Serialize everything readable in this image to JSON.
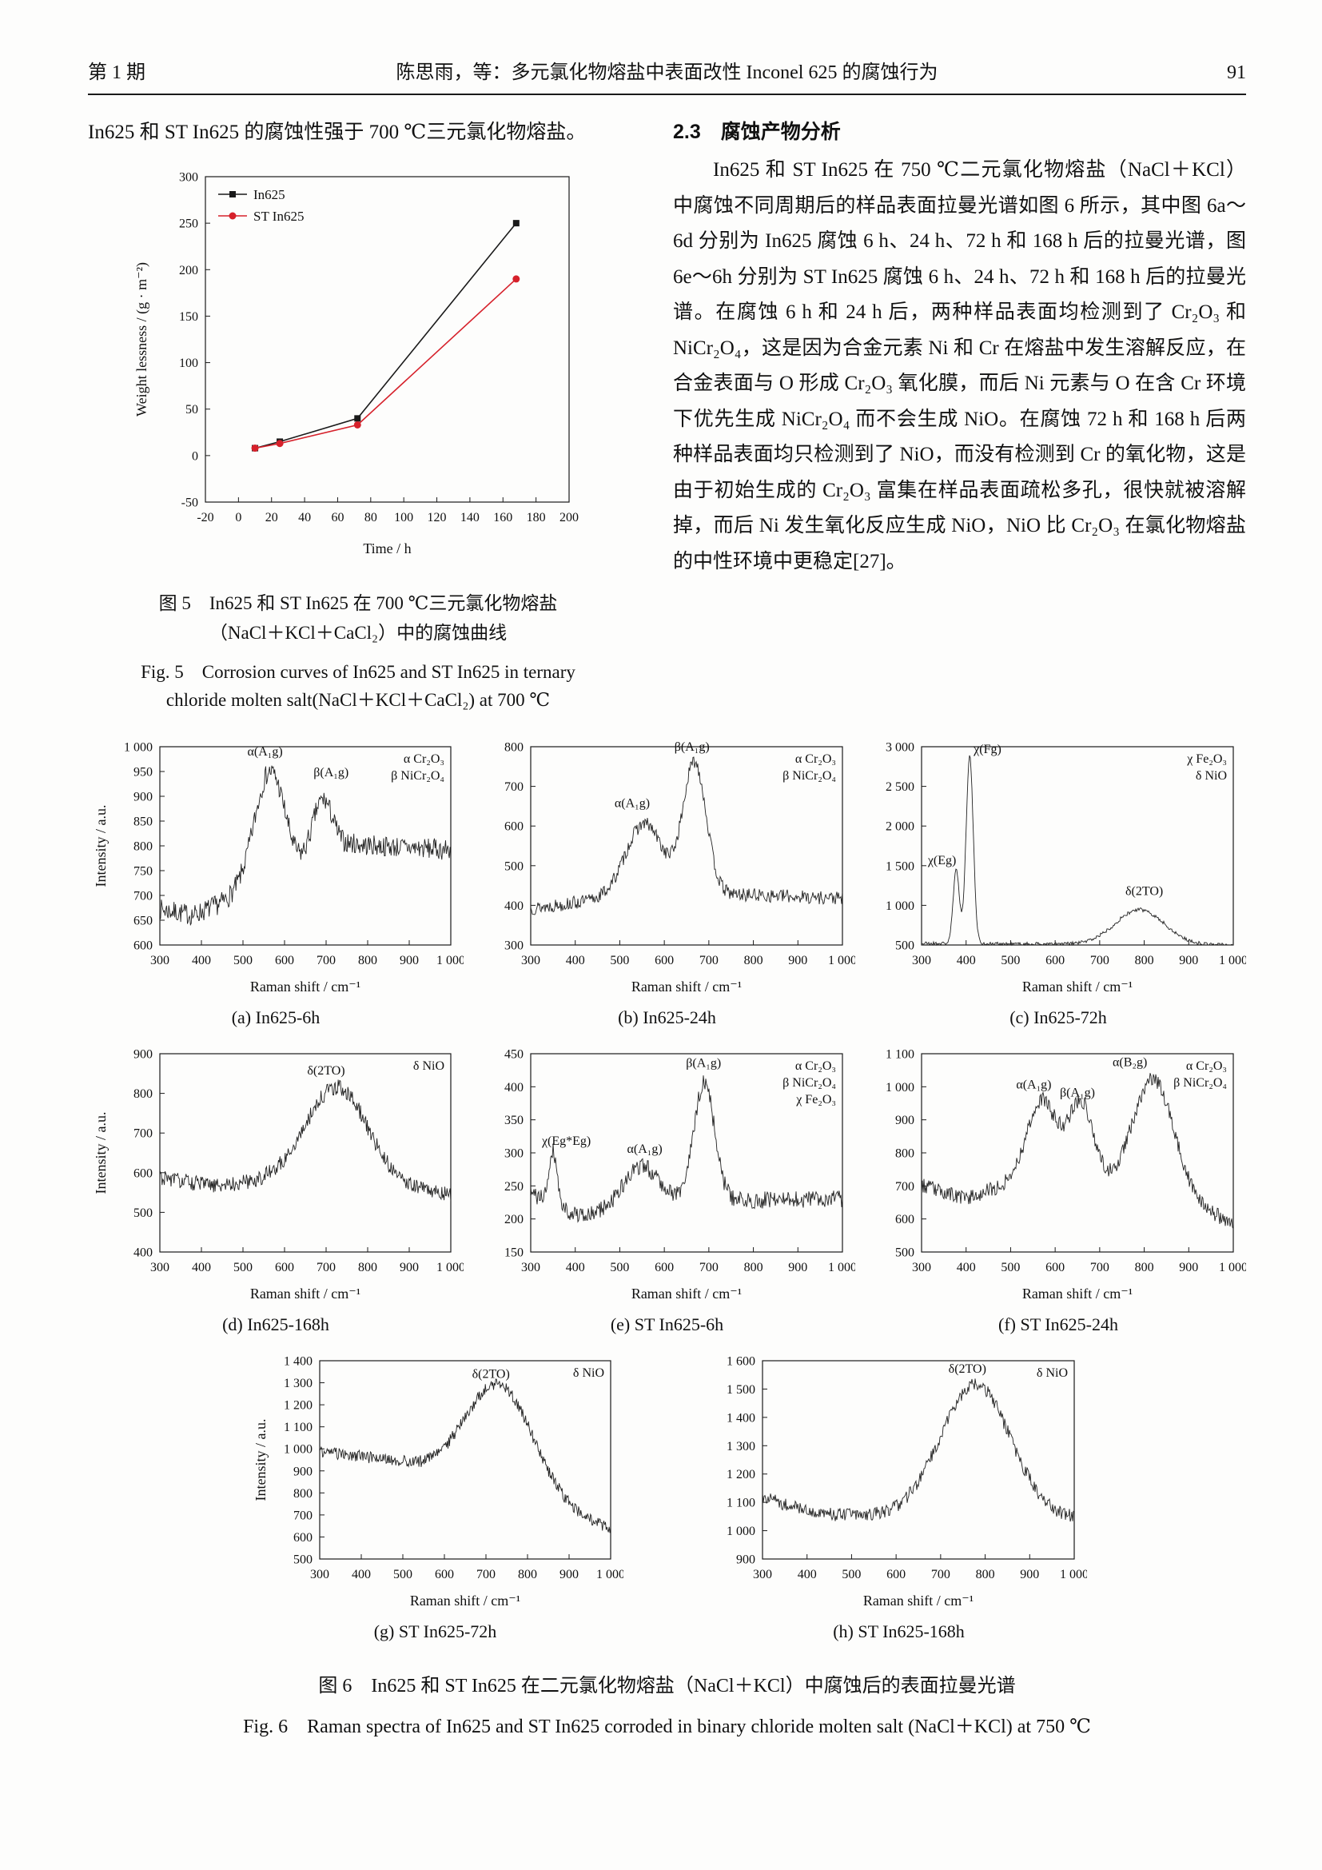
{
  "page": {
    "header": {
      "issue": "第 1 期",
      "title": "陈思雨，等：多元氯化物熔盐中表面改性 Inconel 625 的腐蚀行为",
      "page_number": "91"
    }
  },
  "left_column": {
    "intro_text": "In625 和 ST In625 的腐蚀性强于 700 ℃三元氯化物熔盐。"
  },
  "section": {
    "heading": "2.3　腐蚀产物分析",
    "body": "In625 和 ST In625 在 750 ℃二元氯化物熔盐（NaCl＋KCl）中腐蚀不同周期后的样品表面拉曼光谱如图 6 所示，其中图 6a～6d 分别为 In625 腐蚀 6 h、24 h、72 h 和 168 h 后的拉曼光谱，图 6e～6h 分别为 ST In625 腐蚀 6 h、24 h、72 h 和 168 h 后的拉曼光谱。在腐蚀 6 h 和 24 h 后，两种样品表面均检测到了 Cr₂O₃ 和 NiCr₂O₄，这是因为合金元素 Ni 和 Cr 在熔盐中发生溶解反应，在合金表面与 O 形成 Cr₂O₃ 氧化膜，而后 Ni 元素与 O 在含 Cr 环境下优先生成 NiCr₂O₄ 而不会生成 NiO。在腐蚀 72 h 和 168 h 后两种样品表面均只检测到了 NiO，而没有检测到 Cr 的氧化物，这是由于初始生成的 Cr₂O₃ 富集在样品表面疏松多孔，很快就被溶解掉，而后 Ni 发生氧化反应生成 NiO，NiO 比 Cr₂O₃ 在氯化物熔盐的中性环境中更稳定[27]。"
  },
  "fig5": {
    "caption_cn": [
      "图 5　In625 和 ST In625 在 700 ℃三元氯化物熔盐",
      "（NaCl＋KCl＋CaCl₂）中的腐蚀曲线"
    ],
    "caption_en": [
      "Fig. 5　Corrosion curves of In625 and ST In625 in ternary",
      "chloride molten salt(NaCl＋KCl＋CaCl₂) at 700 ℃"
    ]
  },
  "fig6": {
    "caption_cn": "图 6　In625 和 ST In625 在二元氯化物熔盐（NaCl＋KCl）中腐蚀后的表面拉曼光谱",
    "caption_en": "Fig. 6　Raman spectra of In625 and ST In625 corroded in binary chloride molten salt (NaCl＋KCl) at 750 ℃"
  },
  "chart_data": [
    {
      "id": "fig5",
      "type": "line",
      "xlabel": "Time / h",
      "ylabel": "Weight lessness / (g · m⁻²)",
      "xlim": [
        -20,
        200
      ],
      "ylim": [
        -50,
        300
      ],
      "xtick_step": 20,
      "ytick_step": 50,
      "series": [
        {
          "name": "In625",
          "color": "#1a1a1a",
          "marker": "square",
          "points": [
            [
              10,
              8
            ],
            [
              25,
              15
            ],
            [
              72,
              40
            ],
            [
              168,
              250
            ]
          ]
        },
        {
          "name": "ST In625",
          "color": "#d6212b",
          "marker": "circle",
          "points": [
            [
              10,
              8
            ],
            [
              25,
              13
            ],
            [
              72,
              33
            ],
            [
              168,
              190
            ]
          ]
        }
      ]
    },
    {
      "id": "raman-a",
      "type": "spectrum",
      "caption": "(a) In625-6h",
      "xlabel": "Raman shift / cm⁻¹",
      "ylabel": "Intensity / a.u.",
      "xlim": [
        300,
        1000
      ],
      "ylim": [
        600,
        1000
      ],
      "xtick_step": 100,
      "ytick_step": 50,
      "seed": 7,
      "noise": 21,
      "baseline": [
        [
          300,
          672
        ],
        [
          380,
          660
        ],
        [
          480,
          695
        ],
        [
          620,
          720
        ],
        [
          760,
          803
        ],
        [
          1000,
          792
        ]
      ],
      "peaks": [
        {
          "c": 565,
          "a": 240,
          "w": 38
        },
        {
          "c": 690,
          "a": 130,
          "w": 26
        }
      ],
      "annotations": [
        {
          "t": "α(A₁g)",
          "x": 553,
          "y": 982
        },
        {
          "t": "β(A₁g)",
          "x": 712,
          "y": 940
        }
      ],
      "legend": [
        "α Cr₂O₃",
        "β NiCr₂O₄"
      ]
    },
    {
      "id": "raman-b",
      "type": "spectrum",
      "caption": "(b) In625-24h",
      "xlabel": "Raman shift / cm⁻¹",
      "xlim": [
        300,
        1000
      ],
      "ylim": [
        300,
        800
      ],
      "xtick_step": 100,
      "ytick_step": 100,
      "seed": 13,
      "noise": 17,
      "baseline": [
        [
          300,
          392
        ],
        [
          460,
          415
        ],
        [
          700,
          430
        ],
        [
          1000,
          418
        ]
      ],
      "peaks": [
        {
          "c": 555,
          "a": 185,
          "w": 42
        },
        {
          "c": 668,
          "a": 330,
          "w": 26
        }
      ],
      "annotations": [
        {
          "t": "α(A₁g)",
          "x": 528,
          "y": 648
        },
        {
          "t": "β(A₁g)",
          "x": 662,
          "y": 790
        }
      ],
      "legend": [
        "α Cr₂O₃",
        "β NiCr₂O₄"
      ]
    },
    {
      "id": "raman-c",
      "type": "spectrum",
      "caption": "(c) In625-72h",
      "xlabel": "Raman shift / cm⁻¹",
      "xlim": [
        300,
        1000
      ],
      "ylim": [
        500,
        3000
      ],
      "xtick_step": 100,
      "ytick_step": 500,
      "seed": 21,
      "noise": 24,
      "baseline": [
        [
          300,
          520
        ],
        [
          600,
          510
        ],
        [
          1000,
          498
        ]
      ],
      "peaks": [
        {
          "c": 378,
          "a": 930,
          "w": 7
        },
        {
          "c": 408,
          "a": 2370,
          "w": 8
        },
        {
          "c": 790,
          "a": 440,
          "w": 55
        }
      ],
      "annotations": [
        {
          "t": "χ(Eg)",
          "x": 346,
          "y": 1520
        },
        {
          "t": "χ(Fg)",
          "x": 448,
          "y": 2920
        },
        {
          "t": "δ(2TO)",
          "x": 800,
          "y": 1130
        }
      ],
      "legend": [
        "χ Fe₂O₃",
        "δ NiO"
      ]
    },
    {
      "id": "raman-d",
      "type": "spectrum",
      "caption": "(d) In625-168h",
      "xlabel": "Raman shift / cm⁻¹",
      "ylabel": "Intensity / a.u.",
      "xlim": [
        300,
        1000
      ],
      "ylim": [
        400,
        900
      ],
      "xtick_step": 100,
      "ytick_step": 100,
      "seed": 31,
      "noise": 20,
      "baseline": [
        [
          300,
          588
        ],
        [
          430,
          566
        ],
        [
          640,
          592
        ],
        [
          1000,
          548
        ]
      ],
      "peaks": [
        {
          "c": 728,
          "a": 235,
          "w": 72
        }
      ],
      "annotations": [
        {
          "t": "δ(2TO)",
          "x": 700,
          "y": 848
        }
      ],
      "legend": [
        "δ NiO"
      ]
    },
    {
      "id": "raman-e",
      "type": "spectrum",
      "caption": "(e) ST In625-6h",
      "xlabel": "Raman shift / cm⁻¹",
      "xlim": [
        300,
        1000
      ],
      "ylim": [
        150,
        450
      ],
      "xtick_step": 100,
      "ytick_step": 50,
      "seed": 41,
      "noise": 13,
      "baseline": [
        [
          300,
          238
        ],
        [
          420,
          202
        ],
        [
          520,
          232
        ],
        [
          700,
          228
        ],
        [
          1000,
          230
        ]
      ],
      "peaks": [
        {
          "c": 350,
          "a": 82,
          "w": 9
        },
        {
          "c": 552,
          "a": 48,
          "w": 36
        },
        {
          "c": 690,
          "a": 178,
          "w": 23
        }
      ],
      "annotations": [
        {
          "t": "χ(Eg*Eg)",
          "x": 380,
          "y": 312
        },
        {
          "t": "α(A₁g)",
          "x": 556,
          "y": 300
        },
        {
          "t": "β(A₁g)",
          "x": 688,
          "y": 430
        }
      ],
      "legend": [
        "α Cr₂O₃",
        "β NiCr₂O₄",
        "χ Fe₂O₃"
      ]
    },
    {
      "id": "raman-f",
      "type": "spectrum",
      "caption": "(f) ST In625-24h",
      "xlabel": "Raman shift / cm⁻¹",
      "xlim": [
        300,
        1000
      ],
      "ylim": [
        500,
        1100
      ],
      "xtick_step": 100,
      "ytick_step": 100,
      "seed": 53,
      "noise": 23,
      "baseline": [
        [
          300,
          702
        ],
        [
          395,
          662
        ],
        [
          500,
          705
        ],
        [
          700,
          700
        ],
        [
          870,
          660
        ],
        [
          1000,
          588
        ]
      ],
      "peaks": [
        {
          "c": 570,
          "a": 255,
          "w": 34
        },
        {
          "c": 658,
          "a": 250,
          "w": 28
        },
        {
          "c": 820,
          "a": 350,
          "w": 46
        }
      ],
      "annotations": [
        {
          "t": "α(A₁g)",
          "x": 552,
          "y": 995
        },
        {
          "t": "β(A₁g)",
          "x": 650,
          "y": 970
        },
        {
          "t": "α(B₂g)",
          "x": 768,
          "y": 1062
        }
      ],
      "legend": [
        "α Cr₂O₃",
        "β NiCr₂O₄"
      ]
    },
    {
      "id": "raman-g",
      "type": "spectrum",
      "caption": "(g) ST In625-72h",
      "xlabel": "Raman shift / cm⁻¹",
      "ylabel": "Intensity / a.u.",
      "xlim": [
        300,
        1000
      ],
      "ylim": [
        500,
        1400
      ],
      "xtick_step": 100,
      "ytick_step": 100,
      "seed": 61,
      "noise": 27,
      "baseline": [
        [
          300,
          988
        ],
        [
          480,
          948
        ],
        [
          1000,
          635
        ]
      ],
      "peaks": [
        {
          "c": 733,
          "a": 495,
          "w": 82
        }
      ],
      "annotations": [
        {
          "t": "δ(2TO)",
          "x": 712,
          "y": 1322
        }
      ],
      "legend": [
        "δ NiO"
      ]
    },
    {
      "id": "raman-h",
      "type": "spectrum",
      "caption": "(h) ST In625-168h",
      "xlabel": "Raman shift / cm⁻¹",
      "xlim": [
        300,
        1000
      ],
      "ylim": [
        900,
        1600
      ],
      "xtick_step": 100,
      "ytick_step": 100,
      "seed": 71,
      "noise": 24,
      "baseline": [
        [
          300,
          1118
        ],
        [
          430,
          1058
        ],
        [
          1000,
          1042
        ]
      ],
      "peaks": [
        {
          "c": 778,
          "a": 468,
          "w": 78
        }
      ],
      "annotations": [
        {
          "t": "δ(2TO)",
          "x": 760,
          "y": 1558
        }
      ],
      "legend": [
        "δ NiO"
      ]
    }
  ]
}
